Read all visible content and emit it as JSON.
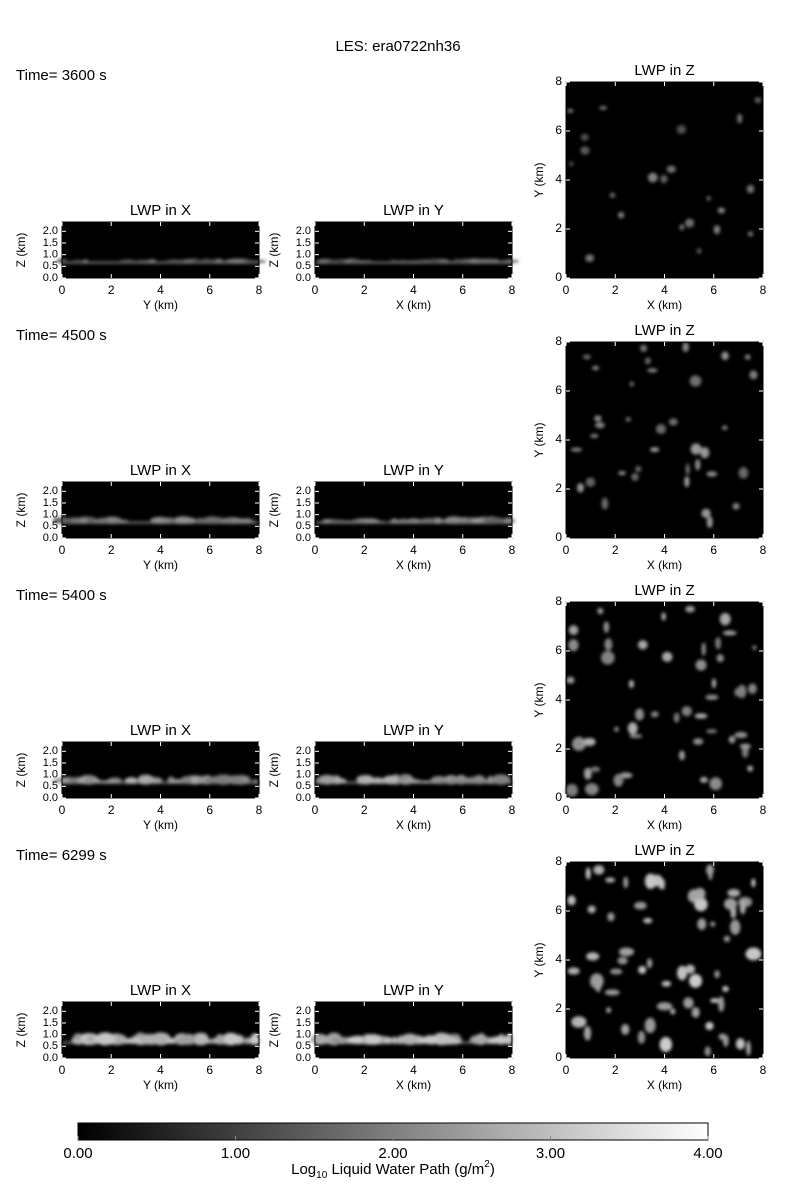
{
  "chart_data": {
    "type": "les-panels",
    "title": "LES: era0722nh36",
    "times": [
      "Time= 3600 s",
      "Time= 4500 s",
      "Time= 5400 s",
      "Time= 6299 s"
    ],
    "panels": [
      {
        "title": "LWP in X",
        "xlabel": "Y (km)",
        "ylabel": "Z (km)",
        "xlim": [
          0,
          8
        ],
        "xticks": [
          0,
          2,
          4,
          6,
          8
        ],
        "ylim": [
          0,
          2.4
        ],
        "yticks": [
          {
            "value": 0,
            "label": "0.0"
          },
          {
            "value": 0.5,
            "label": "0.5"
          },
          {
            "value": 1,
            "label": "1.0"
          },
          {
            "value": 1.5,
            "label": "1.5"
          },
          {
            "value": 2,
            "label": "2.0"
          }
        ]
      },
      {
        "title": "LWP in Y",
        "xlabel": "X (km)",
        "ylabel": "Z (km)",
        "xlim": [
          0,
          8
        ],
        "xticks": [
          0,
          2,
          4,
          6,
          8
        ],
        "ylim": [
          0,
          2.4
        ],
        "yticks": [
          {
            "value": 0,
            "label": "0.0"
          },
          {
            "value": 0.5,
            "label": "0.5"
          },
          {
            "value": 1,
            "label": "1.0"
          },
          {
            "value": 1.5,
            "label": "1.5"
          },
          {
            "value": 2,
            "label": "2.0"
          }
        ]
      },
      {
        "title": "LWP in Z",
        "xlabel": "X (km)",
        "ylabel": "Y (km)",
        "xlim": [
          0,
          8
        ],
        "xticks": [
          0,
          2,
          4,
          6,
          8
        ],
        "ylim": [
          0,
          8
        ],
        "yticks": [
          0,
          2,
          4,
          6,
          8
        ]
      }
    ],
    "colorbar": {
      "xlim": [
        0,
        4
      ],
      "xticks": [
        {
          "value": 0,
          "label": "0.00"
        },
        {
          "value": 1,
          "label": "1.00"
        },
        {
          "value": 2,
          "label": "2.00"
        },
        {
          "value": 3,
          "label": "3.00"
        },
        {
          "value": 4,
          "label": "4.00"
        }
      ],
      "label": [
        "Log",
        "10",
        " Liquid Water Path (g/m",
        "2",
        ")"
      ]
    }
  }
}
